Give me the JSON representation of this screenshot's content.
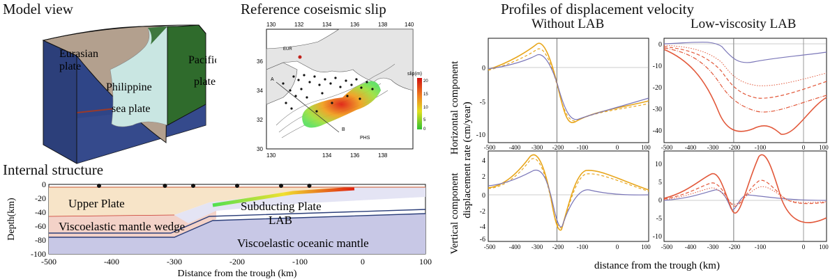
{
  "model_view": {
    "title": "Model view",
    "labels": {
      "eurasian": [
        "Eurasian",
        "plate"
      ],
      "philippine": [
        "Philippine",
        "sea plate"
      ],
      "pacific": [
        "Pacific",
        "plate"
      ]
    },
    "colors": {
      "eurasian": "#b3a08e",
      "philippine": "#c9e6e2",
      "pacific": "#2f6b2c",
      "side": "#2c3f7a"
    }
  },
  "slip_map": {
    "title": "Reference coseismic slip",
    "lon_ticks": [
      "130",
      "132",
      "134",
      "136",
      "138",
      "140"
    ],
    "lat_ticks": [
      "30",
      "32",
      "34",
      "36"
    ],
    "labels": {
      "eur": "EUR",
      "phs": "PHS",
      "a": "A",
      "b": "B",
      "scale": "slip(m)"
    },
    "colorbar_ticks": [
      "20",
      "15",
      "10",
      "5",
      "0"
    ]
  },
  "internal_structure": {
    "title": "Internal structure",
    "ylabel": "Depth(km)",
    "xlabel": "Distance from the trough (km)",
    "x_ticks": [
      "-500",
      "-400",
      "-300",
      "-200",
      "-100",
      "0",
      "100"
    ],
    "y_ticks": [
      "0",
      "-20",
      "-40",
      "-60",
      "-80",
      "-100"
    ],
    "labels": {
      "upper_plate": "Upper Plate",
      "subducting": "Subducting Plate",
      "mantle_wedge": "Viscoelastic mantle wedge",
      "lab": "LAB",
      "oceanic": "Viscoelastic oceanic mantle"
    },
    "stations_km": [
      -420,
      -315,
      -270,
      -200,
      -130,
      -85
    ]
  },
  "profiles": {
    "title": "Profiles of displacement velocity",
    "col_without": "Without LAB",
    "col_low": "Low-viscosity LAB",
    "ylabel_h": "Horizontal component",
    "ylabel_v": "Vertical component",
    "ylabel_rate": "displacement rate (cm/year)",
    "xlabel": "distance from the trough (km)",
    "x_ticks": [
      "-500",
      "-400",
      "-300",
      "-200",
      "-100",
      "0",
      "100"
    ],
    "tl_y_ticks": [
      "0",
      "-5",
      "-10"
    ],
    "tr_y_ticks": [
      "0",
      "-10",
      "-20",
      "-30",
      "-40"
    ],
    "bl_y_ticks": [
      "4",
      "2",
      "0",
      "-2",
      "-4",
      "-6"
    ],
    "br_y_ticks": [
      "10",
      "5",
      "0",
      "-5",
      "-10"
    ]
  }
}
